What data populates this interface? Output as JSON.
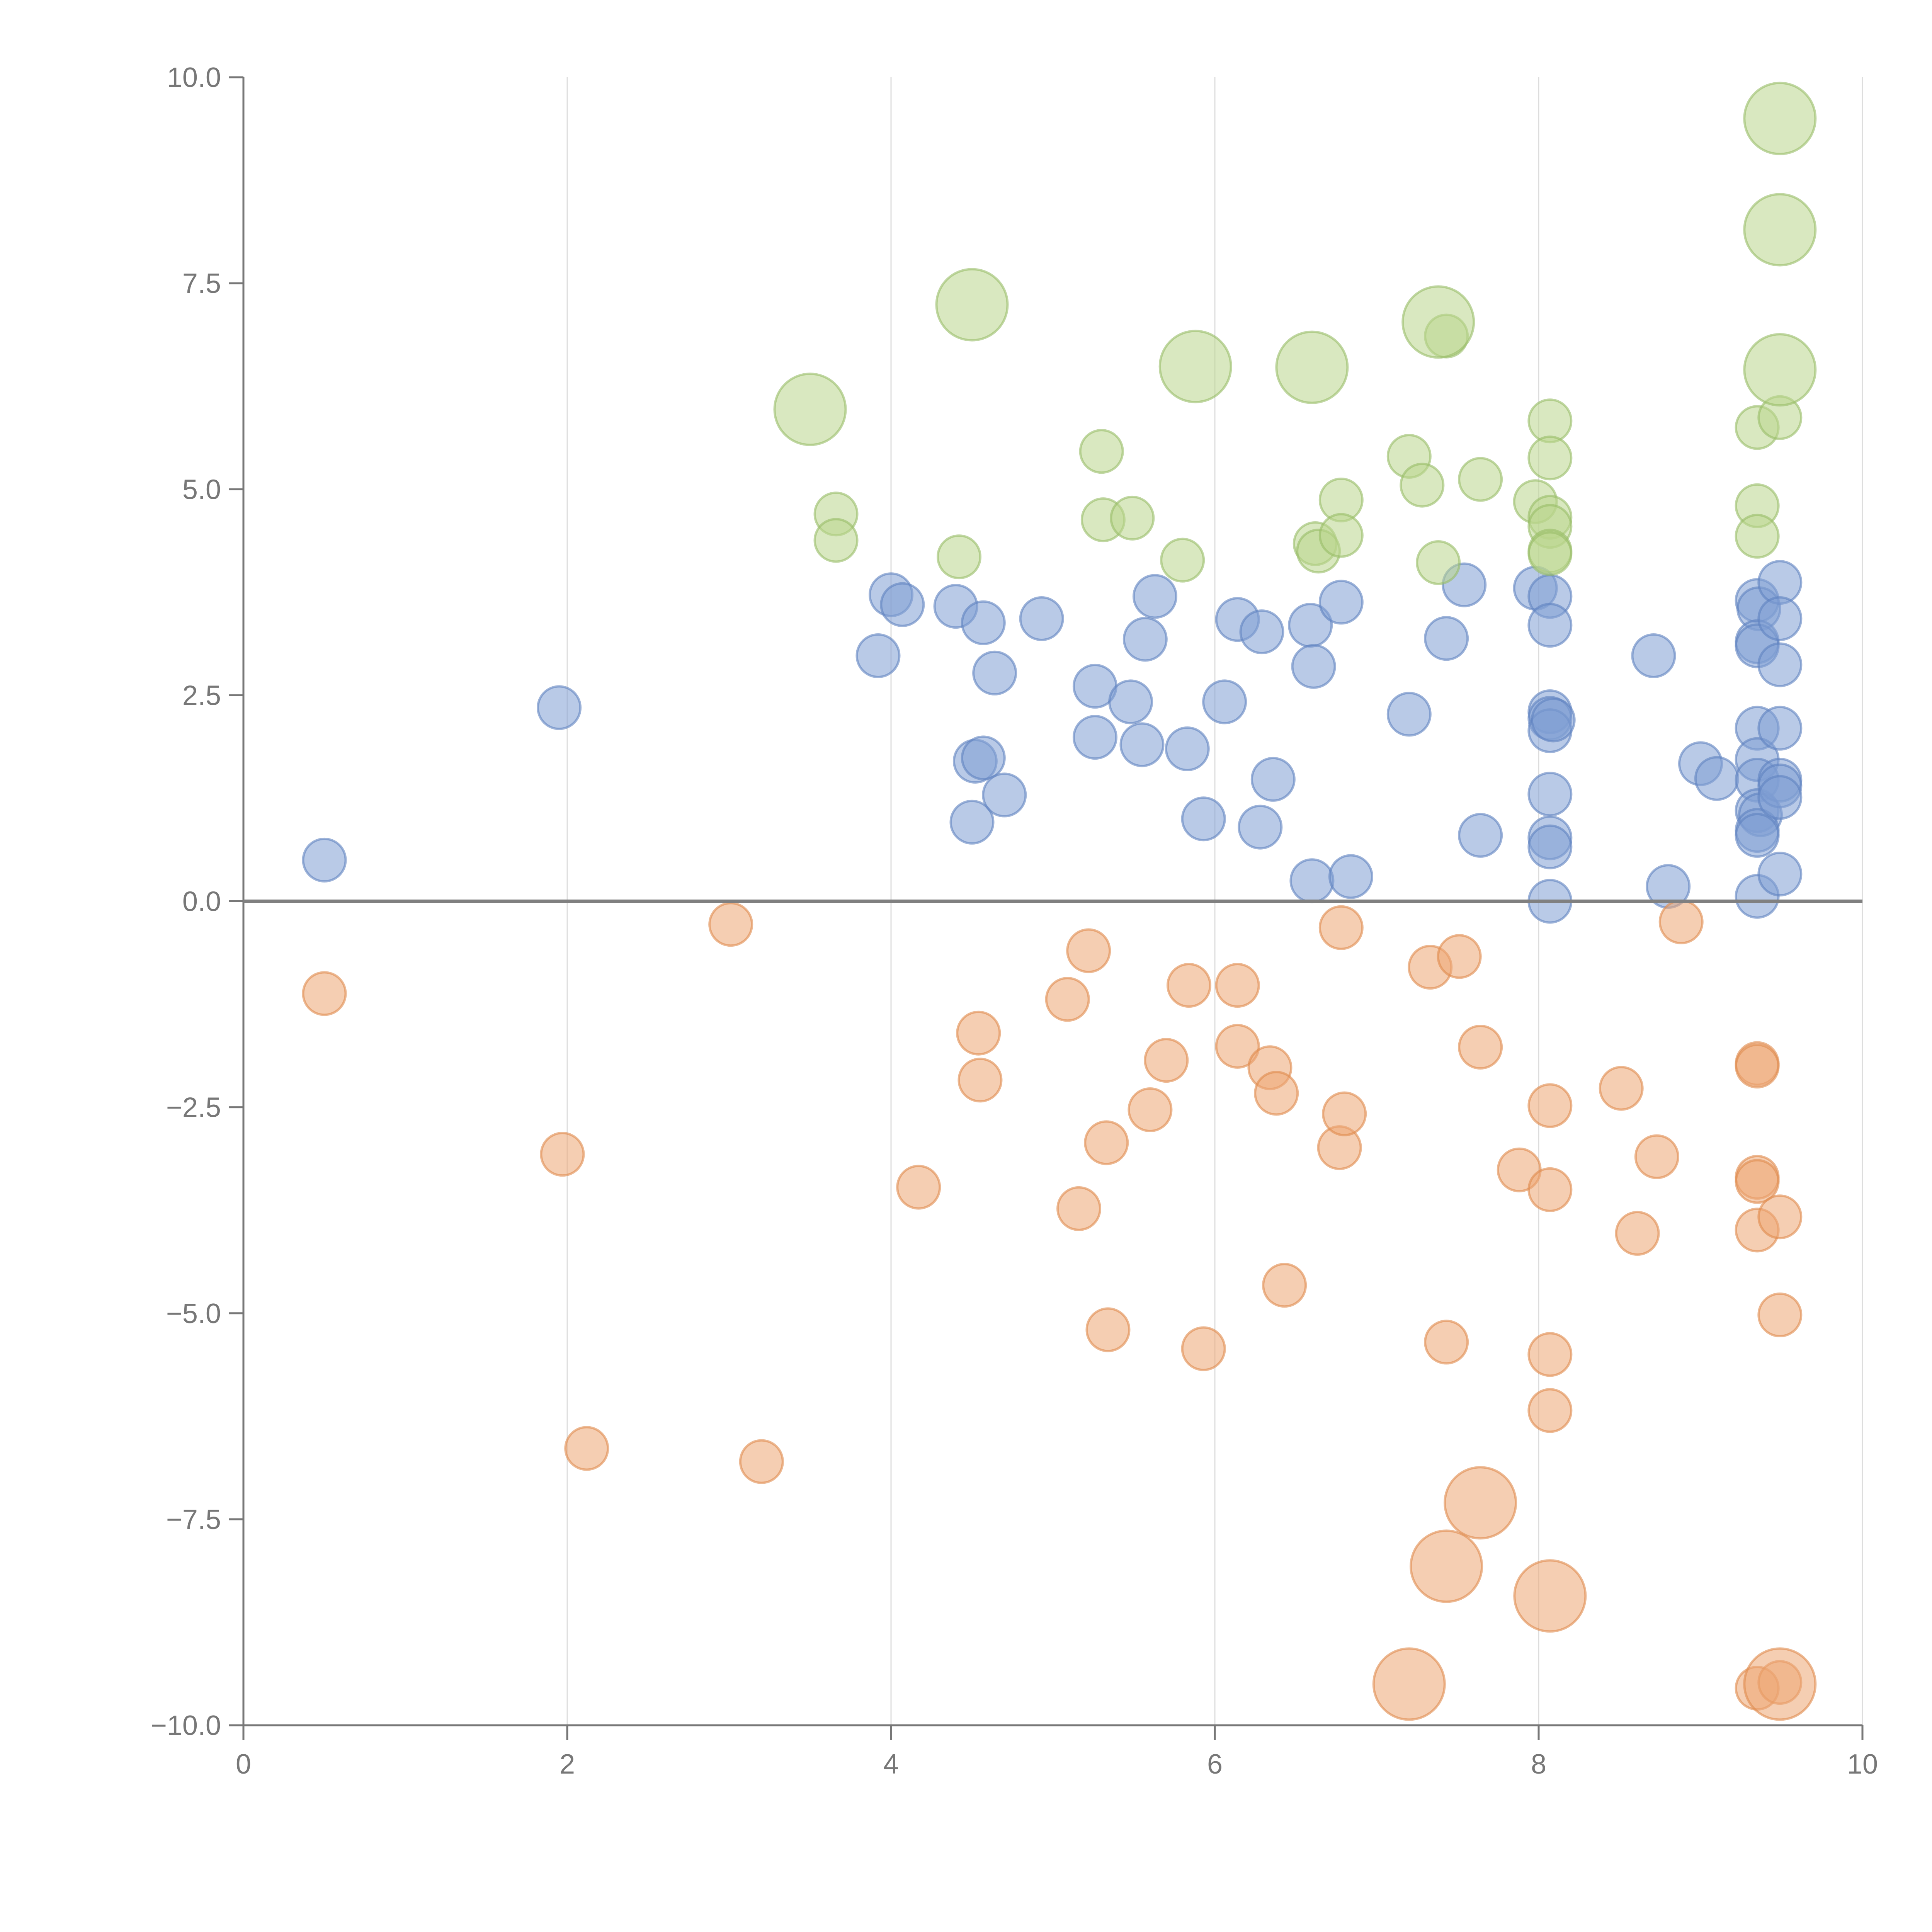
{
  "chart_data": {
    "type": "scatter",
    "title": "",
    "xlabel": "",
    "ylabel": "",
    "xlim": [
      0,
      10
    ],
    "ylim": [
      -10,
      10
    ],
    "x_ticks": [
      0,
      2,
      4,
      6,
      8,
      10
    ],
    "y_ticks": [
      10,
      7.5,
      5,
      2.5,
      0,
      -2.5,
      -5,
      -7.5,
      -10
    ],
    "x_tick_labels": [
      "0",
      "2",
      "4",
      "6",
      "8",
      "10"
    ],
    "y_tick_labels": [
      "10.0",
      "7.5",
      "5.0",
      "2.5",
      "0.0",
      "−2.5",
      "−5.0",
      "−7.5",
      "−10.0"
    ],
    "grid": "vertical",
    "reference_line_y": 0,
    "colors": {
      "blue": "#7f9fd4",
      "blue_stroke": "#5f82c0",
      "orange": "#eca673",
      "orange_stroke": "#e08a4c",
      "green": "#b9d58d",
      "green_stroke": "#98bd68"
    },
    "series": [
      {
        "name": "blue",
        "color_key": "blue",
        "points": [
          {
            "x": 0.5,
            "y": 0.5,
            "s": 1
          },
          {
            "x": 1.95,
            "y": 2.35,
            "s": 1
          },
          {
            "x": 3.92,
            "y": 2.98,
            "s": 1
          },
          {
            "x": 4.0,
            "y": 3.72,
            "s": 1
          },
          {
            "x": 4.07,
            "y": 3.6,
            "s": 1
          },
          {
            "x": 4.4,
            "y": 3.58,
            "s": 1
          },
          {
            "x": 4.57,
            "y": 3.38,
            "s": 1
          },
          {
            "x": 4.64,
            "y": 2.77,
            "s": 1
          },
          {
            "x": 4.93,
            "y": 3.43,
            "s": 1
          },
          {
            "x": 4.52,
            "y": 1.7,
            "s": 1
          },
          {
            "x": 4.57,
            "y": 1.74,
            "s": 1
          },
          {
            "x": 4.5,
            "y": 0.96,
            "s": 1
          },
          {
            "x": 4.7,
            "y": 1.29,
            "s": 1
          },
          {
            "x": 5.26,
            "y": 2.61,
            "s": 1
          },
          {
            "x": 5.26,
            "y": 1.99,
            "s": 1
          },
          {
            "x": 5.48,
            "y": 2.42,
            "s": 1
          },
          {
            "x": 5.55,
            "y": 1.9,
            "s": 1
          },
          {
            "x": 5.57,
            "y": 3.18,
            "s": 1
          },
          {
            "x": 5.63,
            "y": 3.7,
            "s": 1
          },
          {
            "x": 5.83,
            "y": 1.85,
            "s": 1
          },
          {
            "x": 5.93,
            "y": 1.0,
            "s": 1
          },
          {
            "x": 6.06,
            "y": 2.42,
            "s": 1
          },
          {
            "x": 6.14,
            "y": 3.42,
            "s": 1
          },
          {
            "x": 6.29,
            "y": 3.27,
            "s": 1
          },
          {
            "x": 6.28,
            "y": 0.9,
            "s": 1
          },
          {
            "x": 6.36,
            "y": 1.48,
            "s": 1
          },
          {
            "x": 6.59,
            "y": 3.35,
            "s": 1
          },
          {
            "x": 6.61,
            "y": 2.85,
            "s": 1
          },
          {
            "x": 6.6,
            "y": 0.25,
            "s": 1
          },
          {
            "x": 6.78,
            "y": 3.63,
            "s": 1
          },
          {
            "x": 6.84,
            "y": 0.3,
            "s": 1
          },
          {
            "x": 7.2,
            "y": 2.27,
            "s": 1
          },
          {
            "x": 7.43,
            "y": 3.19,
            "s": 1
          },
          {
            "x": 7.54,
            "y": 3.84,
            "s": 1
          },
          {
            "x": 7.64,
            "y": 0.8,
            "s": 1
          },
          {
            "x": 7.98,
            "y": 3.8,
            "s": 1
          },
          {
            "x": 8.07,
            "y": 3.7,
            "s": 1
          },
          {
            "x": 8.07,
            "y": 3.35,
            "s": 1
          },
          {
            "x": 8.07,
            "y": 2.3,
            "s": 1
          },
          {
            "x": 8.07,
            "y": 2.22,
            "s": 1
          },
          {
            "x": 8.07,
            "y": 2.07,
            "s": 1
          },
          {
            "x": 8.09,
            "y": 2.2,
            "s": 1
          },
          {
            "x": 8.07,
            "y": 1.3,
            "s": 1
          },
          {
            "x": 8.07,
            "y": 0.77,
            "s": 1
          },
          {
            "x": 8.07,
            "y": 0.66,
            "s": 1
          },
          {
            "x": 8.07,
            "y": 0.0,
            "s": 1
          },
          {
            "x": 8.71,
            "y": 2.98,
            "s": 1
          },
          {
            "x": 9.0,
            "y": 1.67,
            "s": 1
          },
          {
            "x": 9.1,
            "y": 1.49,
            "s": 1
          },
          {
            "x": 8.8,
            "y": 0.18,
            "s": 1
          },
          {
            "x": 9.35,
            "y": 3.65,
            "s": 1
          },
          {
            "x": 9.36,
            "y": 3.55,
            "s": 1
          },
          {
            "x": 9.35,
            "y": 3.15,
            "s": 1
          },
          {
            "x": 9.35,
            "y": 3.1,
            "s": 1
          },
          {
            "x": 9.35,
            "y": 2.1,
            "s": 1
          },
          {
            "x": 9.35,
            "y": 1.72,
            "s": 1
          },
          {
            "x": 9.35,
            "y": 1.47,
            "s": 1
          },
          {
            "x": 9.35,
            "y": 1.1,
            "s": 1
          },
          {
            "x": 9.37,
            "y": 1.05,
            "s": 1
          },
          {
            "x": 9.35,
            "y": 0.86,
            "s": 1
          },
          {
            "x": 9.35,
            "y": 0.8,
            "s": 1
          },
          {
            "x": 9.35,
            "y": 0.06,
            "s": 1
          },
          {
            "x": 9.49,
            "y": 3.87,
            "s": 1
          },
          {
            "x": 9.49,
            "y": 3.43,
            "s": 1
          },
          {
            "x": 9.49,
            "y": 2.87,
            "s": 1
          },
          {
            "x": 9.49,
            "y": 2.1,
            "s": 1
          },
          {
            "x": 9.49,
            "y": 1.47,
            "s": 1
          },
          {
            "x": 9.49,
            "y": 1.4,
            "s": 1
          },
          {
            "x": 9.49,
            "y": 1.26,
            "s": 1
          },
          {
            "x": 9.49,
            "y": 0.33,
            "s": 1
          }
        ]
      },
      {
        "name": "orange",
        "color_key": "orange",
        "points": [
          {
            "x": 0.5,
            "y": -1.12,
            "s": 1
          },
          {
            "x": 1.97,
            "y": -3.07,
            "s": 1
          },
          {
            "x": 2.12,
            "y": -6.64,
            "s": 1
          },
          {
            "x": 3.01,
            "y": -0.28,
            "s": 1
          },
          {
            "x": 3.2,
            "y": -6.8,
            "s": 1
          },
          {
            "x": 4.17,
            "y": -3.47,
            "s": 1
          },
          {
            "x": 4.54,
            "y": -1.6,
            "s": 1
          },
          {
            "x": 4.55,
            "y": -2.17,
            "s": 1
          },
          {
            "x": 5.09,
            "y": -1.19,
            "s": 1
          },
          {
            "x": 5.16,
            "y": -3.73,
            "s": 1
          },
          {
            "x": 5.22,
            "y": -0.6,
            "s": 1
          },
          {
            "x": 5.33,
            "y": -2.93,
            "s": 1
          },
          {
            "x": 5.34,
            "y": -5.2,
            "s": 1
          },
          {
            "x": 5.6,
            "y": -2.53,
            "s": 1
          },
          {
            "x": 5.7,
            "y": -1.93,
            "s": 1
          },
          {
            "x": 5.84,
            "y": -1.02,
            "s": 1
          },
          {
            "x": 5.93,
            "y": -5.43,
            "s": 1
          },
          {
            "x": 6.14,
            "y": -1.02,
            "s": 1
          },
          {
            "x": 6.14,
            "y": -1.76,
            "s": 1
          },
          {
            "x": 6.34,
            "y": -2.02,
            "s": 1
          },
          {
            "x": 6.38,
            "y": -2.33,
            "s": 1
          },
          {
            "x": 6.43,
            "y": -4.66,
            "s": 1
          },
          {
            "x": 6.77,
            "y": -2.99,
            "s": 1
          },
          {
            "x": 6.8,
            "y": -2.58,
            "s": 1
          },
          {
            "x": 6.78,
            "y": -0.32,
            "s": 1
          },
          {
            "x": 7.33,
            "y": -0.8,
            "s": 1
          },
          {
            "x": 7.51,
            "y": -0.67,
            "s": 1
          },
          {
            "x": 7.43,
            "y": -5.35,
            "s": 1
          },
          {
            "x": 7.64,
            "y": -1.77,
            "s": 1
          },
          {
            "x": 7.88,
            "y": -3.26,
            "s": 1
          },
          {
            "x": 8.07,
            "y": -2.48,
            "s": 1
          },
          {
            "x": 8.07,
            "y": -3.5,
            "s": 1
          },
          {
            "x": 8.07,
            "y": -5.5,
            "s": 1
          },
          {
            "x": 8.07,
            "y": -6.18,
            "s": 1
          },
          {
            "x": 8.51,
            "y": -2.27,
            "s": 1
          },
          {
            "x": 8.61,
            "y": -4.03,
            "s": 1
          },
          {
            "x": 8.73,
            "y": -3.1,
            "s": 1
          },
          {
            "x": 8.88,
            "y": -0.25,
            "s": 1
          },
          {
            "x": 9.35,
            "y": -1.97,
            "s": 1
          },
          {
            "x": 9.35,
            "y": -2.0,
            "s": 1
          },
          {
            "x": 9.35,
            "y": -3.35,
            "s": 1
          },
          {
            "x": 9.35,
            "y": -3.4,
            "s": 1
          },
          {
            "x": 9.35,
            "y": -3.99,
            "s": 1
          },
          {
            "x": 9.49,
            "y": -3.83,
            "s": 1
          },
          {
            "x": 9.49,
            "y": -5.02,
            "s": 1
          },
          {
            "x": 9.35,
            "y": -9.55,
            "s": 1
          },
          {
            "x": 9.49,
            "y": -9.48,
            "s": 1
          },
          {
            "x": 7.2,
            "y": -9.5,
            "s": 2
          },
          {
            "x": 7.43,
            "y": -8.07,
            "s": 2
          },
          {
            "x": 7.64,
            "y": -7.3,
            "s": 2
          },
          {
            "x": 8.07,
            "y": -8.43,
            "s": 2
          },
          {
            "x": 9.49,
            "y": -9.5,
            "s": 2
          }
        ]
      },
      {
        "name": "green",
        "color_key": "green",
        "points": [
          {
            "x": 3.66,
            "y": 4.7,
            "s": 1
          },
          {
            "x": 3.66,
            "y": 4.38,
            "s": 1
          },
          {
            "x": 4.42,
            "y": 4.18,
            "s": 1
          },
          {
            "x": 5.3,
            "y": 5.46,
            "s": 1
          },
          {
            "x": 5.31,
            "y": 4.63,
            "s": 1
          },
          {
            "x": 5.49,
            "y": 4.65,
            "s": 1
          },
          {
            "x": 5.8,
            "y": 4.14,
            "s": 1
          },
          {
            "x": 6.62,
            "y": 4.34,
            "s": 1
          },
          {
            "x": 6.64,
            "y": 4.25,
            "s": 1
          },
          {
            "x": 6.78,
            "y": 4.87,
            "s": 1
          },
          {
            "x": 6.78,
            "y": 4.44,
            "s": 1
          },
          {
            "x": 7.2,
            "y": 5.4,
            "s": 1
          },
          {
            "x": 7.28,
            "y": 5.05,
            "s": 1
          },
          {
            "x": 7.38,
            "y": 4.11,
            "s": 1
          },
          {
            "x": 7.43,
            "y": 6.86,
            "s": 1
          },
          {
            "x": 7.64,
            "y": 5.12,
            "s": 1
          },
          {
            "x": 7.98,
            "y": 4.85,
            "s": 1
          },
          {
            "x": 8.07,
            "y": 5.83,
            "s": 1
          },
          {
            "x": 8.07,
            "y": 5.38,
            "s": 1
          },
          {
            "x": 8.07,
            "y": 4.66,
            "s": 1
          },
          {
            "x": 8.07,
            "y": 4.55,
            "s": 1
          },
          {
            "x": 8.07,
            "y": 4.25,
            "s": 1
          },
          {
            "x": 8.07,
            "y": 4.22,
            "s": 1
          },
          {
            "x": 9.35,
            "y": 5.75,
            "s": 1
          },
          {
            "x": 9.35,
            "y": 4.8,
            "s": 1
          },
          {
            "x": 9.35,
            "y": 4.43,
            "s": 1
          },
          {
            "x": 9.49,
            "y": 5.87,
            "s": 1
          },
          {
            "x": 3.5,
            "y": 5.97,
            "s": 2
          },
          {
            "x": 4.5,
            "y": 7.24,
            "s": 2
          },
          {
            "x": 5.88,
            "y": 6.49,
            "s": 2
          },
          {
            "x": 6.6,
            "y": 6.48,
            "s": 2
          },
          {
            "x": 7.38,
            "y": 7.03,
            "s": 2
          },
          {
            "x": 9.49,
            "y": 9.5,
            "s": 2
          },
          {
            "x": 9.49,
            "y": 8.15,
            "s": 2
          },
          {
            "x": 9.49,
            "y": 6.45,
            "s": 2
          }
        ]
      }
    ]
  }
}
